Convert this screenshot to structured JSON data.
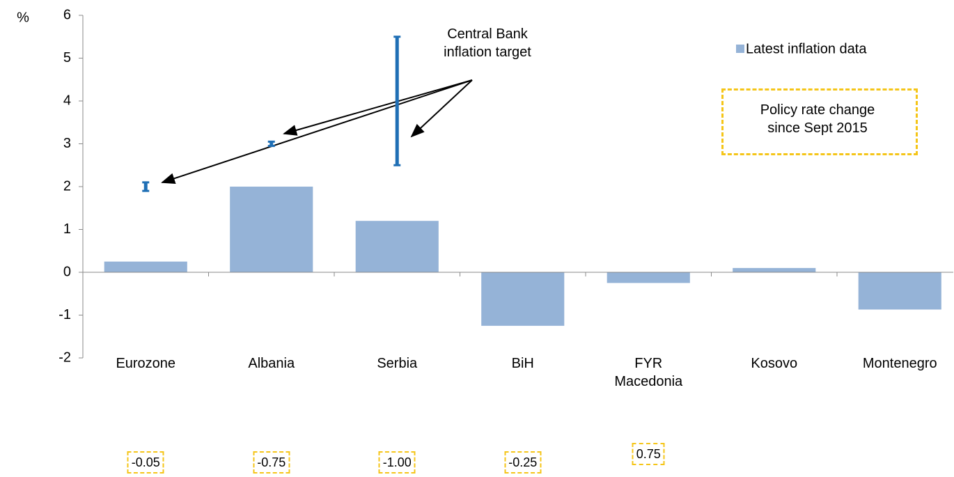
{
  "chart_data": {
    "type": "bar",
    "y_label": "%",
    "categories": [
      "Eurozone",
      "Albania",
      "Serbia",
      "BiH",
      "FYR Macedonia",
      "Kosovo",
      "Montenegro"
    ],
    "series": [
      {
        "name": "Latest inflation data",
        "color": "#95b3d7",
        "values": [
          0.25,
          2.0,
          1.2,
          -1.25,
          -0.25,
          0.1,
          -0.87
        ]
      }
    ],
    "inflation_target": {
      "color": "#1f6fb5",
      "values": [
        2,
        3,
        4,
        null,
        null,
        null,
        null
      ],
      "errors": [
        0.1,
        0.05,
        1.5,
        null,
        null,
        null,
        null
      ]
    },
    "policy_rate_change": {
      "title": "Policy rate change since Sept 2015",
      "values": [
        -0.05,
        -0.75,
        -1.0,
        -0.25,
        0.75,
        null,
        null
      ],
      "value_labels": [
        "-0.05",
        "-0.75",
        "-1.00",
        "-0.25",
        "0.75",
        null,
        null
      ]
    },
    "annotation": "Central Bank inflation target",
    "ylim": [
      -2,
      6
    ],
    "yticks": [
      -2,
      -1,
      0,
      1,
      2,
      3,
      4,
      5,
      6
    ],
    "grid": false,
    "legend": "upper right"
  }
}
